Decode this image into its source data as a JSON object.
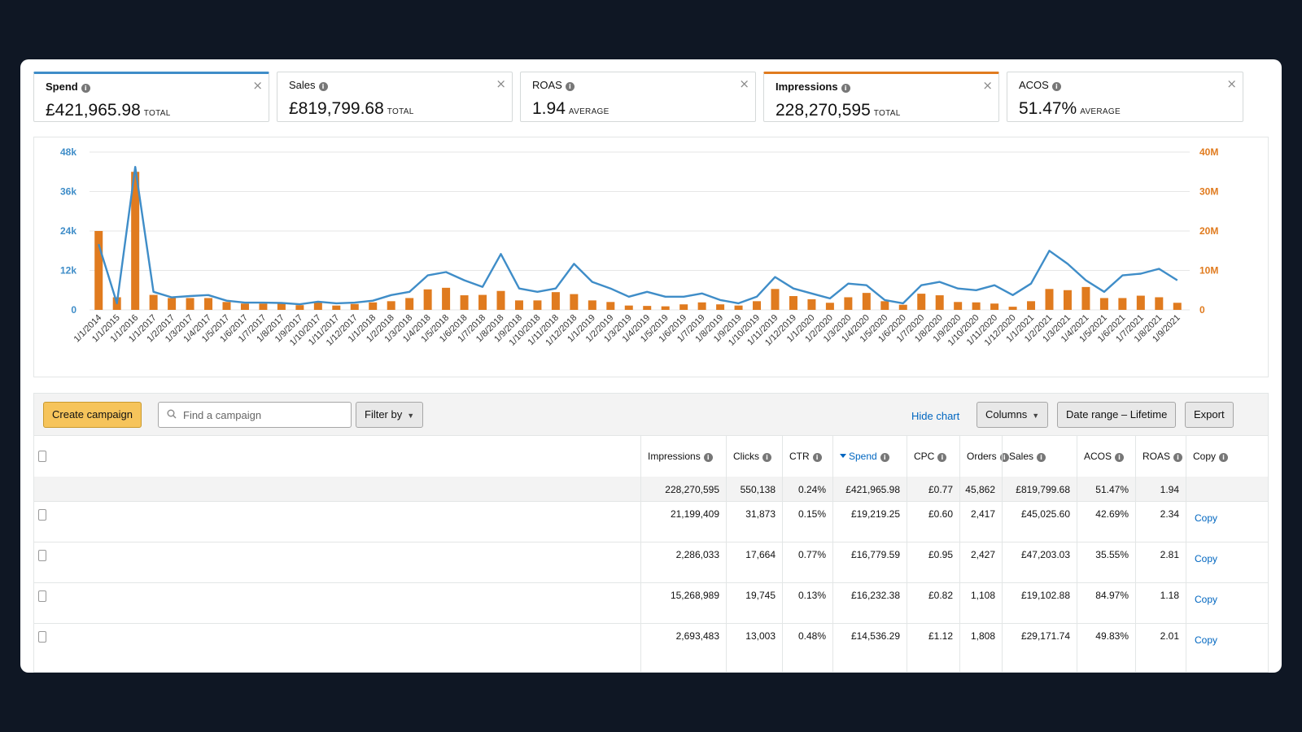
{
  "metrics": [
    {
      "label": "Spend",
      "value": "£421,965.98",
      "suffix": "TOTAL",
      "active": "blue"
    },
    {
      "label": "Sales",
      "value": "£819,799.68",
      "suffix": "TOTAL",
      "active": ""
    },
    {
      "label": "ROAS",
      "value": "1.94",
      "suffix": "AVERAGE",
      "active": ""
    },
    {
      "label": "Impressions",
      "value": "228,270,595",
      "suffix": "TOTAL",
      "active": "orange"
    },
    {
      "label": "ACOS",
      "value": "51.47%",
      "suffix": "AVERAGE",
      "active": ""
    }
  ],
  "chart_data": {
    "type": "bar+line",
    "colors": {
      "spend_line": "#3f8dc8",
      "impressions_bar": "#e07b1f"
    },
    "left_axis": {
      "ticks": [
        "0",
        "12k",
        "24k",
        "36k",
        "48k"
      ],
      "max": 48000,
      "color": "#3f8dc8"
    },
    "right_axis": {
      "ticks": [
        "0",
        "10M",
        "20M",
        "30M",
        "40M"
      ],
      "max": 40000000,
      "color": "#e07b1f"
    },
    "grid": true,
    "x_labels": [
      "1/1/2014",
      "1/1/2015",
      "1/1/2016",
      "1/1/2017",
      "1/2/2017",
      "1/3/2017",
      "1/4/2017",
      "1/5/2017",
      "1/6/2017",
      "1/7/2017",
      "1/8/2017",
      "1/9/2017",
      "1/10/2017",
      "1/11/2017",
      "1/12/2017",
      "1/1/2018",
      "1/2/2018",
      "1/3/2018",
      "1/4/2018",
      "1/5/2018",
      "1/6/2018",
      "1/7/2018",
      "1/8/2018",
      "1/9/2018",
      "1/10/2018",
      "1/11/2018",
      "1/12/2018",
      "1/1/2019",
      "1/2/2019",
      "1/3/2019",
      "1/4/2019",
      "1/5/2019",
      "1/6/2019",
      "1/7/2019",
      "1/8/2019",
      "1/9/2019",
      "1/10/2019",
      "1/11/2019",
      "1/12/2019",
      "1/1/2020",
      "1/2/2020",
      "1/3/2020",
      "1/4/2020",
      "1/5/2020",
      "1/6/2020",
      "1/7/2020",
      "1/8/2020",
      "1/9/2020",
      "1/10/2020",
      "1/11/2020",
      "1/12/2020",
      "1/1/2021",
      "1/2/2021",
      "1/3/2021",
      "1/4/2021",
      "1/5/2021",
      "1/6/2021",
      "1/7/2021",
      "1/8/2021",
      "1/9/2021"
    ],
    "series": [
      {
        "name": "Impressions",
        "axis": "right",
        "type": "bar",
        "values": [
          20000000,
          3200000,
          35000000,
          3800000,
          3000000,
          3000000,
          3000000,
          2000000,
          1600000,
          1600000,
          1600000,
          1200000,
          2000000,
          1100000,
          1500000,
          1900000,
          2200000,
          3000000,
          5200000,
          5600000,
          3700000,
          3800000,
          4800000,
          2400000,
          2400000,
          4500000,
          4000000,
          2400000,
          2000000,
          1100000,
          1000000,
          900000,
          1400000,
          1900000,
          1400000,
          1100000,
          2200000,
          5300000,
          3500000,
          2700000,
          1800000,
          3200000,
          4300000,
          2200000,
          1300000,
          4100000,
          3700000,
          2000000,
          1900000,
          1600000,
          800000,
          2200000,
          5300000,
          5000000,
          5800000,
          3000000,
          3000000,
          3600000,
          3200000,
          1800000
        ]
      },
      {
        "name": "Spend",
        "axis": "left",
        "type": "line",
        "values": [
          20000,
          2000,
          43500,
          5500,
          3800,
          4200,
          4500,
          2800,
          2200,
          2200,
          2100,
          1700,
          2500,
          2000,
          2200,
          2800,
          4500,
          5500,
          10500,
          11500,
          9000,
          7000,
          17000,
          6500,
          5500,
          6500,
          14000,
          8500,
          6500,
          4000,
          5500,
          4000,
          4000,
          5000,
          3000,
          2000,
          4000,
          10000,
          6500,
          5000,
          3500,
          8000,
          7500,
          3000,
          2000,
          7500,
          8500,
          6500,
          6000,
          7500,
          4500,
          8000,
          18000,
          14000,
          9000,
          5500,
          10500,
          11000,
          12500,
          9000
        ]
      }
    ]
  },
  "toolbar": {
    "create_label": "Create campaign",
    "search_placeholder": "Find a campaign",
    "filter_label": "Filter by",
    "hide_chart_label": "Hide chart",
    "columns_label": "Columns",
    "date_range_label": "Date range – Lifetime",
    "export_label": "Export"
  },
  "table": {
    "headers": [
      "Impressions",
      "Clicks",
      "CTR",
      "Spend",
      "CPC",
      "Orders",
      "Sales",
      "ACOS",
      "ROAS",
      "Copy"
    ],
    "totals": [
      "228,270,595",
      "550,138",
      "0.24%",
      "£421,965.98",
      "£0.77",
      "45,862",
      "£819,799.68",
      "51.47%",
      "1.94",
      ""
    ],
    "rows": [
      [
        "21,199,409",
        "31,873",
        "0.15%",
        "£19,219.25",
        "£0.60",
        "2,417",
        "£45,025.60",
        "42.69%",
        "2.34",
        "Copy"
      ],
      [
        "2,286,033",
        "17,664",
        "0.77%",
        "£16,779.59",
        "£0.95",
        "2,427",
        "£47,203.03",
        "35.55%",
        "2.81",
        "Copy"
      ],
      [
        "15,268,989",
        "19,745",
        "0.13%",
        "£16,232.38",
        "£0.82",
        "1,108",
        "£19,102.88",
        "84.97%",
        "1.18",
        "Copy"
      ],
      [
        "2,693,483",
        "13,003",
        "0.48%",
        "£14,536.29",
        "£1.12",
        "1,808",
        "£29,171.74",
        "49.83%",
        "2.01",
        "Copy"
      ]
    ]
  }
}
